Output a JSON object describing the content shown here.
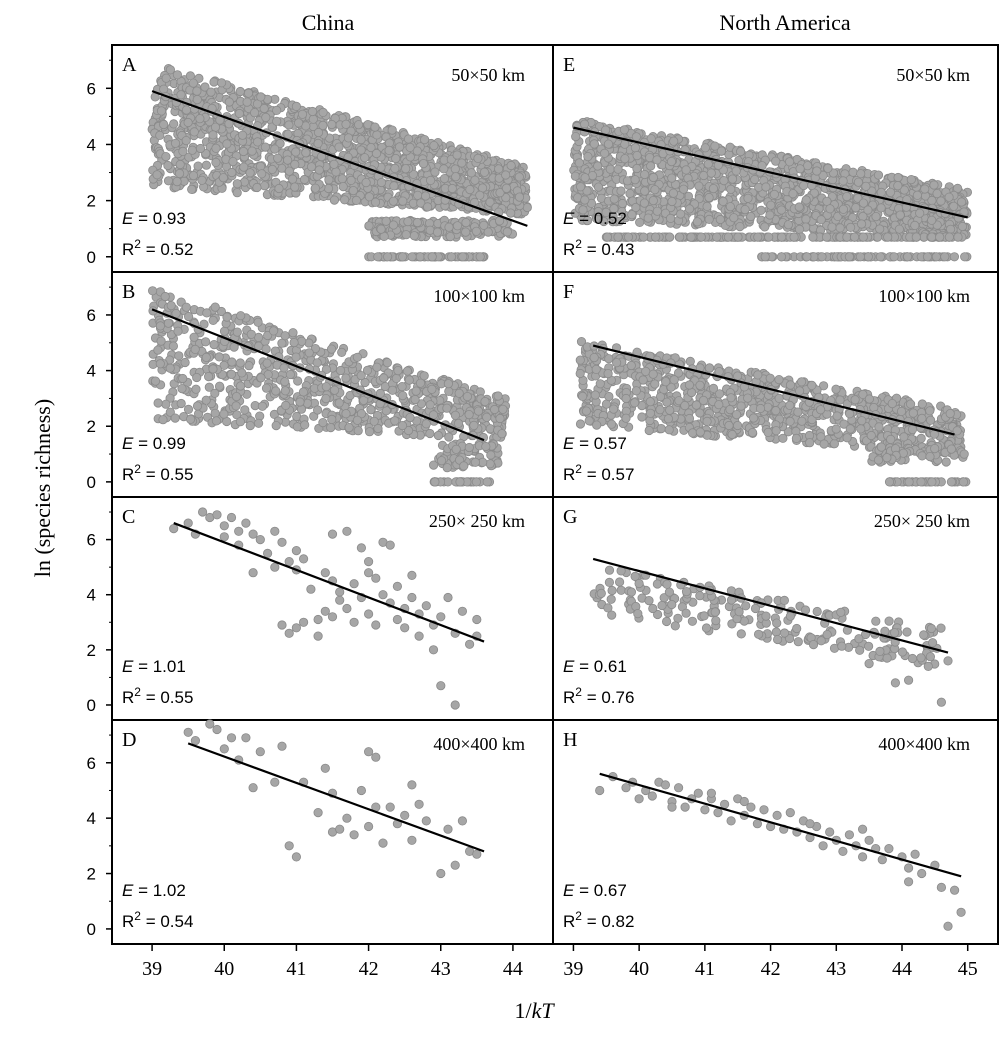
{
  "columns": [
    {
      "title": "China",
      "x_ticks": [
        "39",
        "40",
        "41",
        "42",
        "43",
        "44"
      ]
    },
    {
      "title": "North America",
      "x_ticks": [
        "39",
        "40",
        "41",
        "42",
        "43",
        "44",
        "45"
      ]
    }
  ],
  "xlabel": "1/kT",
  "ylabel": "ln (species richness)",
  "y_ticks": [
    "0",
    "2",
    "4",
    "6"
  ],
  "colors": {
    "points": "#a6a6a6",
    "point_edge": "#8a8a8a",
    "fit_line": "#000000",
    "frame": "#000000"
  },
  "chart_data": [
    {
      "type": "scatter",
      "panel": "A",
      "region": "China",
      "scale": "50×50  km",
      "E_label": "E",
      "E_value": "= 0.93",
      "R2_label": "R",
      "R2_sup": "2",
      "R2_value": "= 0.52",
      "xlim": [
        38.5,
        44.5
      ],
      "ylim": [
        -0.4,
        7.4
      ],
      "fit": {
        "x": [
          39.0,
          44.2
        ],
        "y": [
          5.9,
          1.1
        ]
      },
      "point_cloud": [
        {
          "x": [
            39.0,
            44.2
          ],
          "y_low": 2.5,
          "y_high": 6.9,
          "y_low_end": 1.5,
          "y_high_end": 3.2,
          "n": 1500
        },
        {
          "x": [
            42.0,
            44.0
          ],
          "y_low": 0.7,
          "y_high": 1.3,
          "y_low_end": 0.7,
          "y_high_end": 1.3,
          "n": 180
        },
        {
          "x": [
            42.0,
            43.6
          ],
          "y_low": 0.0,
          "y_high": 0.0,
          "y_low_end": 0.0,
          "y_high_end": 0.0,
          "n": 60
        }
      ]
    },
    {
      "type": "scatter",
      "panel": "E",
      "region": "North America",
      "scale": "50×50  km",
      "E_label": "E",
      "E_value": "= 0.52",
      "R2_label": "R",
      "R2_sup": "2",
      "R2_value": "= 0.43",
      "xlim": [
        38.75,
        45.4
      ],
      "ylim": [
        -0.4,
        7.4
      ],
      "fit": {
        "x": [
          39.0,
          45.0
        ],
        "y": [
          4.6,
          1.4
        ]
      },
      "point_cloud": [
        {
          "x": [
            39.0,
            45.0
          ],
          "y_low": 1.3,
          "y_high": 4.9,
          "y_low_end": 0.7,
          "y_high_end": 2.4,
          "n": 1500
        },
        {
          "x": [
            39.5,
            45.0
          ],
          "y_low": 0.7,
          "y_high": 0.7,
          "y_low_end": 0.7,
          "y_high_end": 0.7,
          "n": 160
        },
        {
          "x": [
            41.8,
            45.0
          ],
          "y_low": 0.0,
          "y_high": 0.0,
          "y_low_end": 0.0,
          "y_high_end": 0.0,
          "n": 80
        }
      ]
    },
    {
      "type": "scatter",
      "panel": "B",
      "region": "China",
      "scale": "100×100 km",
      "E_label": "E",
      "E_value": "= 0.99",
      "R2_label": "R",
      "R2_sup": "2",
      "R2_value": "= 0.55",
      "xlim": [
        38.5,
        44.5
      ],
      "ylim": [
        -0.4,
        7.4
      ],
      "fit": {
        "x": [
          39.0,
          43.6
        ],
        "y": [
          6.2,
          1.5
        ]
      },
      "point_cloud": [
        {
          "x": [
            39.0,
            43.9
          ],
          "y_low": 2.2,
          "y_high": 7.0,
          "y_low_end": 1.5,
          "y_high_end": 3.0,
          "n": 800
        },
        {
          "x": [
            42.9,
            43.8
          ],
          "y_low": 0.5,
          "y_high": 1.4,
          "y_low_end": 0.5,
          "y_high_end": 1.4,
          "n": 70
        },
        {
          "x": [
            42.9,
            43.7
          ],
          "y_low": 0.0,
          "y_high": 0.0,
          "y_low_end": 0.0,
          "y_high_end": 0.0,
          "n": 25
        }
      ]
    },
    {
      "type": "scatter",
      "panel": "F",
      "region": "North America",
      "scale": "100×100 km",
      "E_label": "E",
      "E_value": "= 0.57",
      "R2_label": "R",
      "R2_sup": "2",
      "R2_value": "= 0.57",
      "xlim": [
        38.75,
        45.4
      ],
      "ylim": [
        -0.4,
        7.4
      ],
      "fit": {
        "x": [
          39.3,
          44.8
        ],
        "y": [
          4.9,
          1.7
        ]
      },
      "point_cloud": [
        {
          "x": [
            39.1,
            44.9
          ],
          "y_low": 2.0,
          "y_high": 5.1,
          "y_low_end": 1.0,
          "y_high_end": 2.6,
          "n": 900
        },
        {
          "x": [
            43.5,
            45.0
          ],
          "y_low": 0.7,
          "y_high": 1.3,
          "y_low_end": 0.7,
          "y_high_end": 1.3,
          "n": 60
        },
        {
          "x": [
            43.8,
            45.0
          ],
          "y_low": 0.0,
          "y_high": 0.0,
          "y_low_end": 0.0,
          "y_high_end": 0.0,
          "n": 30
        }
      ]
    },
    {
      "type": "scatter",
      "panel": "C",
      "region": "China",
      "scale": "250× 250 km",
      "E_label": "E",
      "E_value": "= 1.01",
      "R2_label": "R",
      "R2_sup": "2",
      "R2_value": "= 0.55",
      "xlim": [
        38.5,
        44.5
      ],
      "ylim": [
        -0.4,
        7.4
      ],
      "fit": {
        "x": [
          39.3,
          43.6
        ],
        "y": [
          6.6,
          2.3
        ]
      },
      "points": [
        [
          39.3,
          6.4
        ],
        [
          39.5,
          6.6
        ],
        [
          39.6,
          6.2
        ],
        [
          39.7,
          7.0
        ],
        [
          39.8,
          6.8
        ],
        [
          39.9,
          6.9
        ],
        [
          40.0,
          6.5
        ],
        [
          40.0,
          6.1
        ],
        [
          40.1,
          6.8
        ],
        [
          40.2,
          6.3
        ],
        [
          40.2,
          5.8
        ],
        [
          40.3,
          6.6
        ],
        [
          40.4,
          6.2
        ],
        [
          40.4,
          4.8
        ],
        [
          40.5,
          6.0
        ],
        [
          40.6,
          5.5
        ],
        [
          40.7,
          6.3
        ],
        [
          40.7,
          5.0
        ],
        [
          40.8,
          5.9
        ],
        [
          40.8,
          2.9
        ],
        [
          40.9,
          5.2
        ],
        [
          40.9,
          2.6
        ],
        [
          41.0,
          5.6
        ],
        [
          41.0,
          4.9
        ],
        [
          41.0,
          2.8
        ],
        [
          41.1,
          5.3
        ],
        [
          41.1,
          3.0
        ],
        [
          41.2,
          4.2
        ],
        [
          41.3,
          3.1
        ],
        [
          41.3,
          2.5
        ],
        [
          41.4,
          4.8
        ],
        [
          41.4,
          3.4
        ],
        [
          41.5,
          6.2
        ],
        [
          41.5,
          4.5
        ],
        [
          41.5,
          3.2
        ],
        [
          41.6,
          3.8
        ],
        [
          41.6,
          4.1
        ],
        [
          41.7,
          6.3
        ],
        [
          41.7,
          3.5
        ],
        [
          41.8,
          4.4
        ],
        [
          41.8,
          3.0
        ],
        [
          41.9,
          5.7
        ],
        [
          41.9,
          3.9
        ],
        [
          42.0,
          5.2
        ],
        [
          42.0,
          4.8
        ],
        [
          42.0,
          3.3
        ],
        [
          42.1,
          4.6
        ],
        [
          42.1,
          2.9
        ],
        [
          42.2,
          5.9
        ],
        [
          42.2,
          4.0
        ],
        [
          42.3,
          3.7
        ],
        [
          42.3,
          5.8
        ],
        [
          42.4,
          4.3
        ],
        [
          42.4,
          3.1
        ],
        [
          42.5,
          3.5
        ],
        [
          42.5,
          2.8
        ],
        [
          42.6,
          4.7
        ],
        [
          42.6,
          3.9
        ],
        [
          42.7,
          3.3
        ],
        [
          42.7,
          2.5
        ],
        [
          42.8,
          3.6
        ],
        [
          42.9,
          2.9
        ],
        [
          42.9,
          2.0
        ],
        [
          43.0,
          0.7
        ],
        [
          43.0,
          3.2
        ],
        [
          43.1,
          3.9
        ],
        [
          43.2,
          0.0
        ],
        [
          43.2,
          2.6
        ],
        [
          43.3,
          3.4
        ],
        [
          43.4,
          2.2
        ],
        [
          43.5,
          3.1
        ],
        [
          43.5,
          2.5
        ]
      ]
    },
    {
      "type": "scatter",
      "panel": "G",
      "region": "North America",
      "scale": "250× 250 km",
      "E_label": "E",
      "E_value": "= 0.61",
      "R2_label": "R",
      "R2_sup": "2",
      "R2_value": "= 0.76",
      "xlim": [
        38.75,
        45.4
      ],
      "ylim": [
        -0.4,
        7.4
      ],
      "fit": {
        "x": [
          39.3,
          44.7
        ],
        "y": [
          5.3,
          1.9
        ]
      },
      "point_cloud": [
        {
          "x": [
            39.3,
            44.6
          ],
          "y_low": 3.3,
          "y_high": 5.1,
          "y_low_end": 1.4,
          "y_high_end": 2.8,
          "n": 220
        }
      ],
      "points": [
        [
          43.9,
          0.8
        ],
        [
          44.6,
          0.1
        ],
        [
          44.4,
          1.4
        ],
        [
          44.1,
          0.9
        ],
        [
          44.7,
          1.6
        ],
        [
          43.5,
          1.5
        ]
      ]
    },
    {
      "type": "scatter",
      "panel": "D",
      "region": "China",
      "scale": "400×400 km",
      "E_label": "E",
      "E_value": "= 1.02",
      "R2_label": "R",
      "R2_sup": "2",
      "R2_value": "= 0.54",
      "xlim": [
        38.5,
        44.5
      ],
      "ylim": [
        -0.4,
        7.4
      ],
      "fit": {
        "x": [
          39.5,
          43.6
        ],
        "y": [
          6.7,
          2.8
        ]
      },
      "points": [
        [
          39.5,
          7.1
        ],
        [
          39.6,
          6.8
        ],
        [
          39.8,
          7.4
        ],
        [
          39.9,
          7.2
        ],
        [
          40.0,
          6.5
        ],
        [
          40.1,
          6.9
        ],
        [
          40.2,
          6.1
        ],
        [
          40.3,
          6.9
        ],
        [
          40.4,
          5.1
        ],
        [
          40.5,
          6.4
        ],
        [
          40.7,
          5.3
        ],
        [
          40.8,
          6.6
        ],
        [
          40.9,
          3.0
        ],
        [
          41.0,
          2.6
        ],
        [
          41.1,
          5.3
        ],
        [
          41.3,
          4.2
        ],
        [
          41.4,
          5.8
        ],
        [
          41.5,
          3.5
        ],
        [
          41.5,
          4.9
        ],
        [
          41.6,
          3.6
        ],
        [
          41.7,
          4.0
        ],
        [
          41.8,
          3.4
        ],
        [
          41.9,
          5.0
        ],
        [
          42.0,
          3.7
        ],
        [
          42.0,
          6.4
        ],
        [
          42.1,
          6.2
        ],
        [
          42.1,
          4.4
        ],
        [
          42.2,
          3.1
        ],
        [
          42.3,
          4.4
        ],
        [
          42.4,
          3.8
        ],
        [
          42.5,
          4.1
        ],
        [
          42.6,
          5.2
        ],
        [
          42.6,
          3.2
        ],
        [
          42.7,
          4.5
        ],
        [
          42.8,
          3.9
        ],
        [
          43.0,
          2.0
        ],
        [
          43.1,
          3.6
        ],
        [
          43.2,
          2.3
        ],
        [
          43.3,
          3.9
        ],
        [
          43.4,
          2.8
        ],
        [
          43.5,
          2.7
        ]
      ]
    },
    {
      "type": "scatter",
      "panel": "H",
      "region": "North America",
      "scale": "400×400 km",
      "E_label": "E",
      "E_value": "= 0.67",
      "R2_label": "R",
      "R2_sup": "2",
      "R2_value": "= 0.82",
      "xlim": [
        38.75,
        45.4
      ],
      "ylim": [
        -0.4,
        7.4
      ],
      "fit": {
        "x": [
          39.4,
          44.9
        ],
        "y": [
          5.6,
          1.9
        ]
      },
      "points": [
        [
          39.4,
          5.0
        ],
        [
          39.6,
          5.5
        ],
        [
          39.8,
          5.1
        ],
        [
          39.9,
          5.3
        ],
        [
          40.0,
          4.7
        ],
        [
          40.1,
          5.0
        ],
        [
          40.2,
          4.8
        ],
        [
          40.3,
          5.3
        ],
        [
          40.4,
          5.2
        ],
        [
          40.5,
          4.6
        ],
        [
          40.6,
          5.1
        ],
        [
          40.7,
          4.4
        ],
        [
          40.8,
          4.7
        ],
        [
          40.9,
          4.9
        ],
        [
          41.0,
          4.3
        ],
        [
          41.1,
          4.7
        ],
        [
          41.1,
          4.9
        ],
        [
          41.2,
          4.2
        ],
        [
          41.3,
          4.5
        ],
        [
          41.4,
          3.9
        ],
        [
          41.5,
          4.7
        ],
        [
          41.6,
          4.1
        ],
        [
          41.7,
          4.4
        ],
        [
          41.8,
          3.8
        ],
        [
          41.9,
          4.3
        ],
        [
          42.0,
          3.7
        ],
        [
          42.1,
          4.1
        ],
        [
          42.2,
          3.6
        ],
        [
          42.3,
          4.2
        ],
        [
          42.4,
          3.5
        ],
        [
          42.5,
          3.9
        ],
        [
          42.6,
          3.3
        ],
        [
          42.7,
          3.7
        ],
        [
          42.8,
          3.0
        ],
        [
          42.9,
          3.5
        ],
        [
          43.0,
          3.2
        ],
        [
          43.1,
          2.8
        ],
        [
          43.2,
          3.4
        ],
        [
          43.3,
          3.0
        ],
        [
          43.4,
          2.6
        ],
        [
          43.5,
          3.2
        ],
        [
          43.6,
          2.9
        ],
        [
          43.7,
          2.5
        ],
        [
          43.8,
          2.9
        ],
        [
          44.0,
          2.6
        ],
        [
          44.1,
          2.2
        ],
        [
          44.2,
          2.7
        ],
        [
          44.3,
          2.0
        ],
        [
          44.5,
          2.3
        ],
        [
          44.6,
          1.5
        ],
        [
          44.7,
          0.1
        ],
        [
          44.8,
          1.4
        ],
        [
          44.9,
          0.6
        ],
        [
          40.5,
          4.4
        ],
        [
          41.6,
          4.6
        ],
        [
          42.6,
          3.8
        ],
        [
          43.4,
          3.6
        ],
        [
          44.1,
          1.7
        ]
      ]
    }
  ]
}
